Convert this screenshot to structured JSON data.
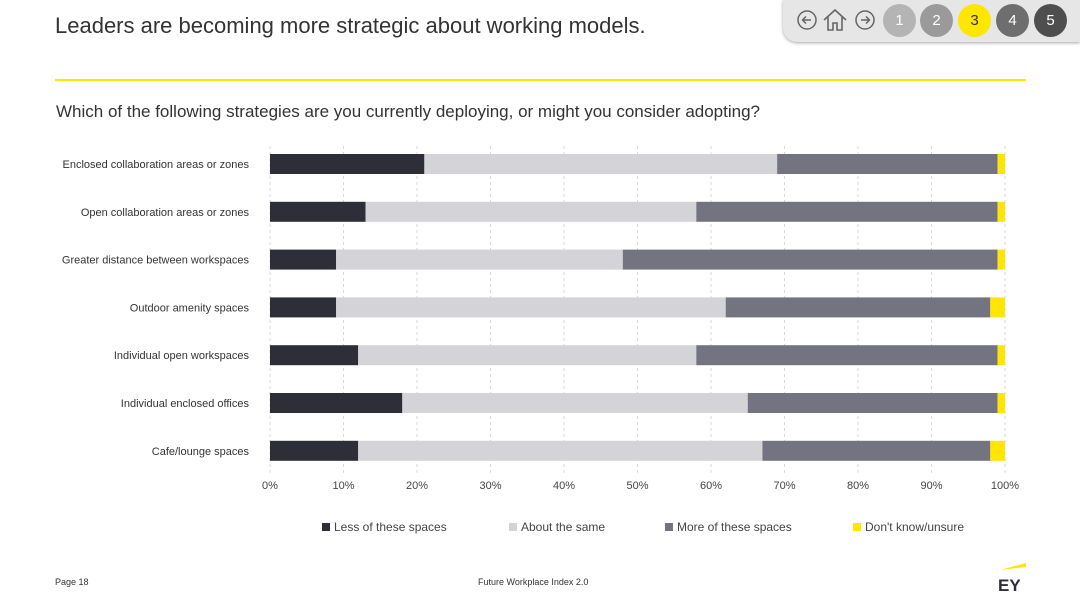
{
  "header": {
    "title": "Leaders are becoming more strategic about working models.",
    "question": "Which of the following strategies are you currently deploying, or might you consider adopting?"
  },
  "nav": {
    "pages": [
      "1",
      "2",
      "3",
      "4",
      "5"
    ],
    "active_page": "3",
    "icons": [
      "back-arrow-icon",
      "home-icon",
      "forward-arrow-icon"
    ]
  },
  "colors": {
    "accent": "#ffe600",
    "less": "#2e2e38",
    "same": "#d3d3d8",
    "more": "#747480",
    "dontknow": "#ffe600"
  },
  "chart_data": {
    "type": "bar",
    "orientation": "horizontal",
    "stacked": true,
    "categories": [
      "Enclosed collaboration areas or zones",
      "Open collaboration areas or zones",
      "Greater distance between workspaces",
      "Outdoor amenity spaces",
      "Individual open workspaces",
      "Individual enclosed offices",
      "Cafe/lounge spaces"
    ],
    "series": [
      {
        "name": "Less of these spaces",
        "color": "#2e2e38",
        "values": [
          21,
          13,
          9,
          9,
          12,
          18,
          12
        ]
      },
      {
        "name": "About the same",
        "color": "#d3d3d8",
        "values": [
          48,
          45,
          39,
          53,
          46,
          47,
          55
        ]
      },
      {
        "name": "More of these spaces",
        "color": "#747480",
        "values": [
          30,
          41,
          51,
          36,
          41,
          34,
          31
        ]
      },
      {
        "name": "Don't know/unsure",
        "color": "#ffe600",
        "values": [
          1,
          1,
          1,
          2,
          1,
          1,
          2
        ]
      }
    ],
    "xlim": [
      0,
      100
    ],
    "xticks": [
      "0%",
      "10%",
      "20%",
      "30%",
      "40%",
      "50%",
      "60%",
      "70%",
      "80%",
      "90%",
      "100%"
    ],
    "grid": "vertical dashed",
    "legend_position": "bottom"
  },
  "footer": {
    "page": "Page 18",
    "center": "Future Workplace Index 2.0",
    "logo": "EY"
  }
}
